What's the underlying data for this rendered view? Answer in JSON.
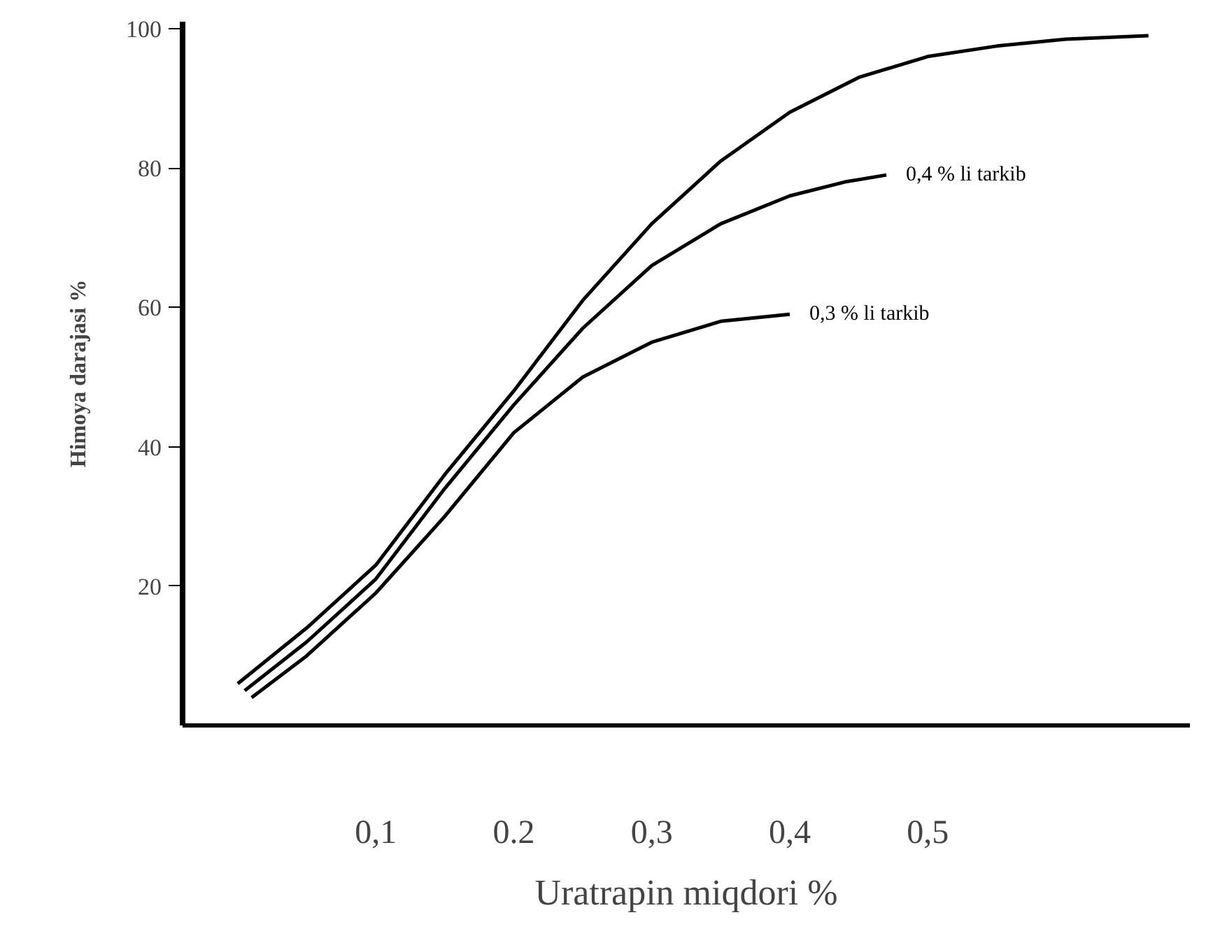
{
  "chart_data": {
    "type": "line",
    "xlabel": "Uratrapin miqdori %",
    "ylabel": "Himoya darajasi %",
    "xlim": [
      -0.04,
      0.69
    ],
    "ylim": [
      0,
      101
    ],
    "xticks": [
      {
        "value": 0.1,
        "label": "0,1"
      },
      {
        "value": 0.2,
        "label": "0.2"
      },
      {
        "value": 0.3,
        "label": "0,3"
      },
      {
        "value": 0.4,
        "label": "0,4"
      },
      {
        "value": 0.5,
        "label": "0,5"
      }
    ],
    "yticks": [
      20,
      40,
      60,
      80,
      100
    ],
    "grid": false,
    "marker": "none",
    "line_style": "solid",
    "series": [
      {
        "color": "#000000",
        "x": [
          0,
          0.05,
          0.1,
          0.15,
          0.2,
          0.25,
          0.3,
          0.35,
          0.4,
          0.45,
          0.5,
          0.55,
          0.6,
          0.66
        ],
        "values": [
          6,
          14,
          23,
          36,
          48,
          61,
          72,
          81,
          88,
          93,
          96,
          97.5,
          98.5,
          99
        ]
      },
      {
        "name": "0,4 % li tarkib",
        "color": "#000000",
        "x": [
          0.005,
          0.05,
          0.1,
          0.15,
          0.2,
          0.25,
          0.3,
          0.35,
          0.4,
          0.44,
          0.47
        ],
        "values": [
          5,
          12,
          21,
          34,
          46,
          57,
          66,
          72,
          76,
          78,
          79
        ]
      },
      {
        "name": "0,3 % li tarkib",
        "color": "#000000",
        "x": [
          0.01,
          0.05,
          0.1,
          0.15,
          0.2,
          0.25,
          0.3,
          0.35,
          0.4
        ],
        "values": [
          4,
          10,
          19,
          30,
          42,
          50,
          55,
          58,
          59
        ]
      }
    ]
  }
}
